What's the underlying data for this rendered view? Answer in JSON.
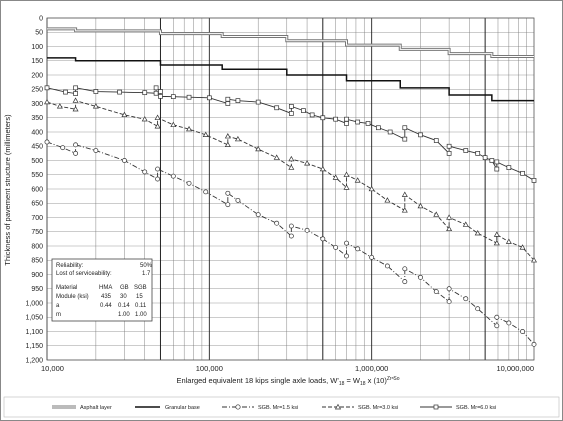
{
  "chart_data": {
    "type": "line",
    "x_scale": "log",
    "xlim": [
      10000,
      10000000
    ],
    "ylim": [
      1200,
      0
    ],
    "y_inverted": true,
    "grid": true,
    "x_major_ticks": [
      10000,
      100000,
      1000000,
      10000000
    ],
    "x_tick_labels": [
      "10,000",
      "100,000",
      "1,000,000",
      "10,000,000"
    ],
    "y_tick_labels": [
      "0",
      "50",
      "100",
      "150",
      "200",
      "250",
      "300",
      "350",
      "400",
      "450",
      "500",
      "550",
      "600",
      "650",
      "700",
      "750",
      "800",
      "850",
      "900",
      "950",
      "1,000",
      "1,050",
      "1,100",
      "1,150",
      "1,200"
    ],
    "xlabel": {
      "prefix": "Enlarged equivalent 18 kips single axle loads, W'",
      "sub1": "18",
      "mid": " = W",
      "sub2": "18",
      "suffix": " x (10)",
      "sup": "ZrᵃSo"
    },
    "ylabel": "Thickness of pavement structure (millimeters)",
    "info_box": {
      "rows": [
        [
          "Reliability:",
          "",
          "",
          "50%"
        ],
        [
          "Lost of serviceability:",
          "",
          "",
          "1.7"
        ]
      ],
      "table": [
        [
          "Material",
          "HMA",
          "GB",
          "SGB"
        ],
        [
          "Module (ksi)",
          "435",
          "30",
          "15"
        ],
        [
          "a",
          "0.44",
          "0.14",
          "0.11"
        ],
        [
          "m",
          "",
          "1.00",
          "1.00"
        ]
      ]
    },
    "legend": [
      {
        "name": "Asphalt layer",
        "style": "double-gray"
      },
      {
        "name": "Granular base",
        "style": "solid-black"
      },
      {
        "name": "SGB. Mr=1.5 ksi",
        "style": "dashdot-circle"
      },
      {
        "name": "SGB. Mr=3.0 ksi",
        "style": "dashed-triangle"
      },
      {
        "name": "SGB. Mr=6.0 ksi",
        "style": "solid-square"
      }
    ],
    "series": [
      {
        "name": "Asphalt layer",
        "points": [
          [
            10000,
            38
          ],
          [
            15000,
            38
          ],
          [
            15000,
            45
          ],
          [
            50000,
            45
          ],
          [
            50000,
            55
          ],
          [
            120000,
            55
          ],
          [
            120000,
            65
          ],
          [
            300000,
            65
          ],
          [
            300000,
            80
          ],
          [
            700000,
            80
          ],
          [
            700000,
            95
          ],
          [
            1500000,
            95
          ],
          [
            1500000,
            110
          ],
          [
            3000000,
            110
          ],
          [
            3000000,
            125
          ],
          [
            5500000,
            125
          ],
          [
            5500000,
            135
          ],
          [
            10000000,
            135
          ]
        ]
      },
      {
        "name": "Granular base",
        "points": [
          [
            10000,
            140
          ],
          [
            15000,
            140
          ],
          [
            15000,
            150
          ],
          [
            50000,
            150
          ],
          [
            50000,
            165
          ],
          [
            120000,
            165
          ],
          [
            120000,
            180
          ],
          [
            300000,
            180
          ],
          [
            300000,
            200
          ],
          [
            700000,
            200
          ],
          [
            700000,
            220
          ],
          [
            1500000,
            220
          ],
          [
            1500000,
            245
          ],
          [
            3000000,
            245
          ],
          [
            3000000,
            270
          ],
          [
            5500000,
            270
          ],
          [
            5500000,
            290
          ],
          [
            10000000,
            290
          ]
        ]
      },
      {
        "name": "SGB. Mr=6.0 ksi",
        "points": [
          [
            10000,
            245
          ],
          [
            13000,
            260
          ],
          [
            15000,
            265
          ],
          [
            15000,
            245
          ],
          [
            20000,
            258
          ],
          [
            28000,
            260
          ],
          [
            40000,
            262
          ],
          [
            47000,
            264
          ],
          [
            47000,
            245
          ],
          [
            50000,
            258
          ],
          [
            50000,
            275
          ],
          [
            60000,
            276
          ],
          [
            75000,
            278
          ],
          [
            100000,
            280
          ],
          [
            130000,
            300
          ],
          [
            130000,
            285
          ],
          [
            150000,
            290
          ],
          [
            200000,
            295
          ],
          [
            260000,
            315
          ],
          [
            320000,
            335
          ],
          [
            320000,
            310
          ],
          [
            380000,
            325
          ],
          [
            430000,
            340
          ],
          [
            500000,
            350
          ],
          [
            600000,
            355
          ],
          [
            700000,
            370
          ],
          [
            700000,
            355
          ],
          [
            820000,
            365
          ],
          [
            950000,
            370
          ],
          [
            1100000,
            385
          ],
          [
            1300000,
            400
          ],
          [
            1600000,
            425
          ],
          [
            1600000,
            385
          ],
          [
            2000000,
            410
          ],
          [
            2500000,
            430
          ],
          [
            3000000,
            475
          ],
          [
            3000000,
            450
          ],
          [
            3800000,
            465
          ],
          [
            4500000,
            475
          ],
          [
            5000000,
            490
          ],
          [
            5500000,
            500
          ],
          [
            5900000,
            530
          ],
          [
            5900000,
            505
          ],
          [
            7000000,
            525
          ],
          [
            8500000,
            545
          ],
          [
            10000000,
            570
          ]
        ]
      },
      {
        "name": "SGB. Mr=3.0 ksi",
        "points": [
          [
            10000,
            295
          ],
          [
            12000,
            310
          ],
          [
            15000,
            320
          ],
          [
            15000,
            290
          ],
          [
            20000,
            310
          ],
          [
            30000,
            340
          ],
          [
            40000,
            355
          ],
          [
            48000,
            380
          ],
          [
            48000,
            350
          ],
          [
            60000,
            375
          ],
          [
            75000,
            390
          ],
          [
            95000,
            410
          ],
          [
            130000,
            445
          ],
          [
            130000,
            415
          ],
          [
            150000,
            425
          ],
          [
            200000,
            460
          ],
          [
            260000,
            490
          ],
          [
            320000,
            525
          ],
          [
            320000,
            495
          ],
          [
            400000,
            510
          ],
          [
            500000,
            530
          ],
          [
            600000,
            560
          ],
          [
            700000,
            595
          ],
          [
            700000,
            550
          ],
          [
            820000,
            570
          ],
          [
            1000000,
            600
          ],
          [
            1250000,
            640
          ],
          [
            1600000,
            675
          ],
          [
            1600000,
            620
          ],
          [
            2000000,
            660
          ],
          [
            2500000,
            690
          ],
          [
            3000000,
            740
          ],
          [
            3000000,
            700
          ],
          [
            3800000,
            725
          ],
          [
            4500000,
            755
          ],
          [
            5900000,
            790
          ],
          [
            5900000,
            760
          ],
          [
            7000000,
            785
          ],
          [
            8500000,
            805
          ],
          [
            10000000,
            850
          ]
        ]
      },
      {
        "name": "SGB. Mr=1.5 ksi",
        "points": [
          [
            10000,
            435
          ],
          [
            12500,
            455
          ],
          [
            15000,
            475
          ],
          [
            15000,
            445
          ],
          [
            20000,
            465
          ],
          [
            30000,
            500
          ],
          [
            40000,
            540
          ],
          [
            48000,
            565
          ],
          [
            48000,
            530
          ],
          [
            60000,
            555
          ],
          [
            75000,
            580
          ],
          [
            95000,
            610
          ],
          [
            130000,
            655
          ],
          [
            130000,
            615
          ],
          [
            150000,
            640
          ],
          [
            200000,
            690
          ],
          [
            260000,
            720
          ],
          [
            320000,
            765
          ],
          [
            320000,
            730
          ],
          [
            400000,
            745
          ],
          [
            500000,
            775
          ],
          [
            600000,
            805
          ],
          [
            700000,
            835
          ],
          [
            700000,
            790
          ],
          [
            820000,
            810
          ],
          [
            1000000,
            840
          ],
          [
            1250000,
            870
          ],
          [
            1600000,
            925
          ],
          [
            1600000,
            880
          ],
          [
            2000000,
            910
          ],
          [
            2500000,
            960
          ],
          [
            3000000,
            995
          ],
          [
            3000000,
            950
          ],
          [
            3800000,
            985
          ],
          [
            4500000,
            1020
          ],
          [
            5900000,
            1080
          ],
          [
            5900000,
            1050
          ],
          [
            7000000,
            1070
          ],
          [
            8500000,
            1100
          ],
          [
            10000000,
            1145
          ]
        ]
      }
    ]
  }
}
